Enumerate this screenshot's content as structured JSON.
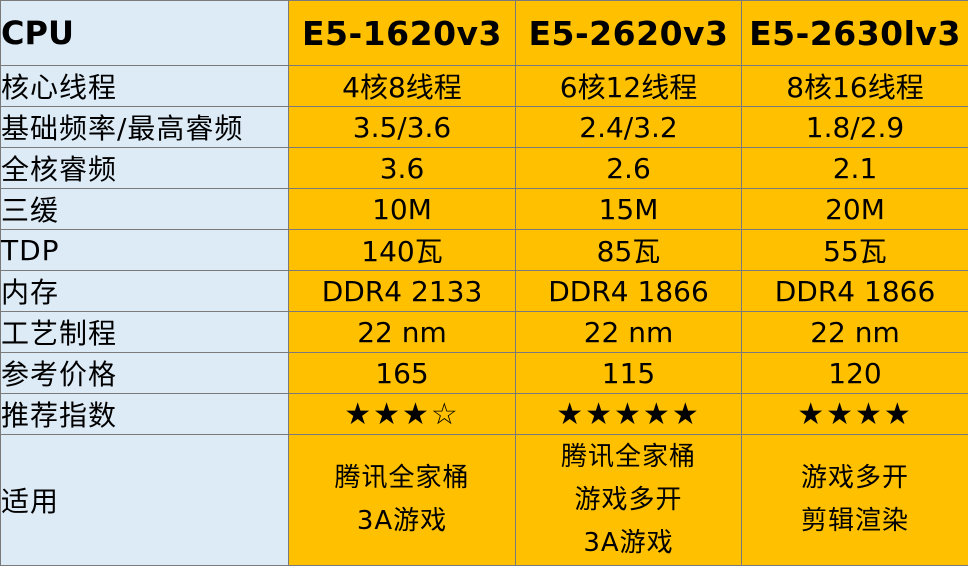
{
  "header": {
    "label": "CPU",
    "cpus": [
      "E5-1620v3",
      "E5-2620v3",
      "E5-2630lv3"
    ]
  },
  "rows": [
    {
      "label": "核心线程",
      "values": [
        "4核8线程",
        "6核12线程",
        "8核16线程"
      ]
    },
    {
      "label": "基础频率/最高睿频",
      "values": [
        "3.5/3.6",
        "2.4/3.2",
        "1.8/2.9"
      ]
    },
    {
      "label": "全核睿频",
      "values": [
        "3.6",
        "2.6",
        "2.1"
      ]
    },
    {
      "label": "三缓",
      "values": [
        "10M",
        "15M",
        "20M"
      ]
    },
    {
      "label": "TDP",
      "values": [
        "140瓦",
        "85瓦",
        "55瓦"
      ]
    },
    {
      "label": "内存",
      "values": [
        "DDR4 2133",
        "DDR4 1866",
        "DDR4 1866"
      ]
    },
    {
      "label": "工艺制程",
      "values": [
        "22 nm",
        "22 nm",
        "22 nm"
      ]
    },
    {
      "label": "参考价格",
      "values": [
        "165",
        "115",
        "120"
      ]
    },
    {
      "label": "推荐指数",
      "values": [
        "★★★☆",
        "★★★★★",
        "★★★★"
      ]
    }
  ],
  "usage": {
    "label": "适用",
    "values": [
      [
        "腾讯全家桶",
        "3A游戏"
      ],
      [
        "腾讯全家桶",
        "游戏多开",
        "3A游戏"
      ],
      [
        "游戏多开",
        "剪辑渲染"
      ]
    ]
  },
  "colors": {
    "label_bg": "#ddebf7",
    "value_bg": "#ffc000",
    "border": "#7a7a7a"
  }
}
